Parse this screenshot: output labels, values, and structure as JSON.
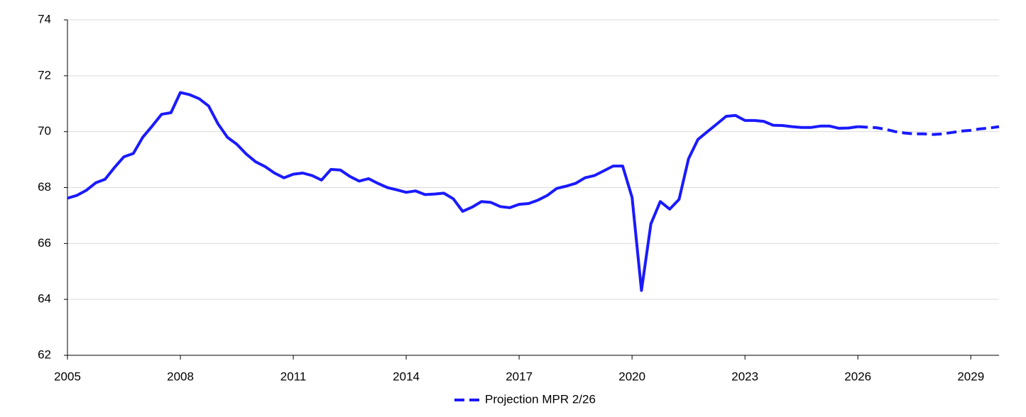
{
  "chart_data": {
    "type": "line",
    "xlim": [
      2005,
      2029.75
    ],
    "xticks": [
      2005,
      2008,
      2011,
      2014,
      2017,
      2020,
      2023,
      2026,
      2029
    ],
    "ylim": [
      62,
      74
    ],
    "yticks": [
      62,
      64,
      66,
      68,
      70,
      72,
      74
    ],
    "grid": true,
    "legend": "bottom",
    "series": [
      {
        "color": "#1a1aff",
        "dash": false,
        "x": [
          2005,
          2005.25,
          2005.5,
          2005.75,
          2006,
          2006.25,
          2006.5,
          2006.75,
          2007,
          2007.25,
          2007.5,
          2007.75,
          2008,
          2008.25,
          2008.5,
          2008.75,
          2009,
          2009.25,
          2009.5,
          2009.75,
          2010,
          2010.25,
          2010.5,
          2010.75,
          2011,
          2011.25,
          2011.5,
          2011.75,
          2012,
          2012.25,
          2012.5,
          2012.75,
          2013,
          2013.25,
          2013.5,
          2013.75,
          2014,
          2014.25,
          2014.5,
          2014.75,
          2015,
          2015.25,
          2015.5,
          2015.75,
          2016,
          2016.25,
          2016.5,
          2016.75,
          2017,
          2017.25,
          2017.5,
          2017.75,
          2018,
          2018.25,
          2018.5,
          2018.75,
          2019,
          2019.25,
          2019.5,
          2019.75,
          2020,
          2020.25,
          2020.5,
          2020.75,
          2021,
          2021.25,
          2021.5,
          2021.75,
          2022,
          2022.25,
          2022.5,
          2022.75,
          2023,
          2023.25,
          2023.5,
          2023.75,
          2024,
          2024.25,
          2024.5,
          2024.75,
          2025,
          2025.25,
          2025.5,
          2025.75,
          2026
        ],
        "values": [
          67.62,
          67.72,
          67.9,
          68.17,
          68.3,
          68.72,
          69.1,
          69.22,
          69.8,
          70.2,
          70.62,
          70.68,
          71.4,
          71.32,
          71.18,
          70.92,
          70.28,
          69.8,
          69.55,
          69.2,
          68.92,
          68.75,
          68.52,
          68.35,
          68.48,
          68.52,
          68.43,
          68.27,
          68.65,
          68.63,
          68.4,
          68.23,
          68.32,
          68.15,
          68.0,
          67.92,
          67.83,
          67.88,
          67.75,
          67.77,
          67.8,
          67.6,
          67.15,
          67.3,
          67.5,
          67.47,
          67.32,
          67.28,
          67.4,
          67.43,
          67.55,
          67.72,
          67.97,
          68.05,
          68.15,
          68.35,
          68.43,
          68.6,
          68.77,
          68.77,
          67.65,
          64.32,
          66.7,
          67.5,
          67.23,
          67.58,
          69.03,
          69.72,
          70.0,
          70.27,
          70.55,
          70.58,
          70.4,
          70.4,
          70.37,
          70.23,
          70.22,
          70.18,
          70.15,
          70.15,
          70.2,
          70.2,
          70.12,
          70.13,
          70.18
        ]
      },
      {
        "name": "Projection MPR 2/26",
        "color": "#1a1aff",
        "dash": true,
        "x": [
          2026,
          2026.25,
          2026.5,
          2026.75,
          2027,
          2027.25,
          2027.5,
          2027.75,
          2028,
          2028.25,
          2028.5,
          2028.75,
          2029,
          2029.25,
          2029.5,
          2029.75
        ],
        "values": [
          70.18,
          70.16,
          70.14,
          70.08,
          70.0,
          69.95,
          69.92,
          69.92,
          69.9,
          69.92,
          69.97,
          70.02,
          70.05,
          70.1,
          70.13,
          70.18
        ]
      }
    ]
  }
}
